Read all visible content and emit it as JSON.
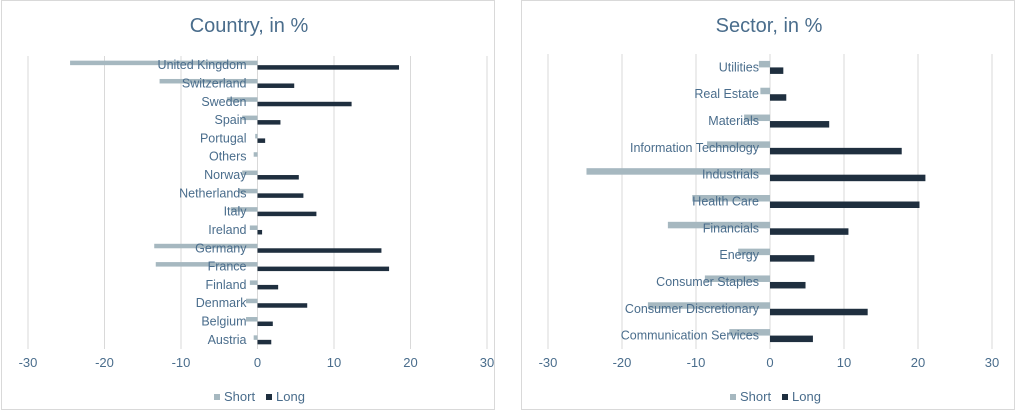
{
  "chart_data": [
    {
      "type": "bar",
      "orientation": "horizontal",
      "title": "Country, in %",
      "categories": [
        "Austria",
        "Belgium",
        "Denmark",
        "Finland",
        "France",
        "Germany",
        "Ireland",
        "Italy",
        "Netherlands",
        "Norway",
        "Others",
        "Portugal",
        "Spain",
        "Sweden",
        "Switzerland",
        "United Kingdom"
      ],
      "series": [
        {
          "name": "Short",
          "color": "#a6b8c0",
          "values": [
            -0.5,
            -1.5,
            -1.5,
            -1,
            -13.3,
            -13.5,
            -1,
            -3.5,
            -2.5,
            -2,
            -0.5,
            -0.3,
            -2,
            -4,
            -12.8,
            -24.5
          ]
        },
        {
          "name": "Long",
          "color": "#1f2f3f",
          "values": [
            1.8,
            2,
            6.5,
            2.7,
            17.2,
            16.2,
            0.6,
            7.7,
            6,
            5.4,
            0,
            1,
            3,
            12.3,
            4.8,
            18.5
          ]
        }
      ],
      "xlim": [
        -30,
        30
      ],
      "xticks": [
        -30,
        -20,
        -10,
        0,
        10,
        20,
        30
      ],
      "xlabel": "",
      "ylabel": "",
      "grid": true,
      "legend": "bottom"
    },
    {
      "type": "bar",
      "orientation": "horizontal",
      "title": "Sector, in %",
      "categories": [
        "Communication Services",
        "Consumer Discretionary",
        "Consumer Staples",
        "Energy",
        "Financials",
        "Health Care",
        "Industrials",
        "Information Technology",
        "Materials",
        "Real Estate",
        "Utilities"
      ],
      "series": [
        {
          "name": "Short",
          "color": "#a6b8c0",
          "values": [
            -5.5,
            -16.5,
            -8.8,
            -4.3,
            -13.8,
            -10.5,
            -24.8,
            -8.5,
            -3.5,
            -1.3,
            -1.5
          ]
        },
        {
          "name": "Long",
          "color": "#1f2f3f",
          "values": [
            5.8,
            13.2,
            4.8,
            6,
            10.6,
            20.2,
            21,
            17.8,
            8,
            2.2,
            1.8
          ]
        }
      ],
      "xlim": [
        -30,
        30
      ],
      "xticks": [
        -30,
        -20,
        -10,
        0,
        10,
        20,
        30
      ],
      "xlabel": "",
      "ylabel": "",
      "grid": true,
      "legend": "bottom"
    }
  ]
}
